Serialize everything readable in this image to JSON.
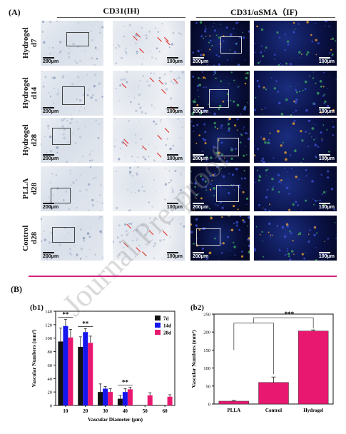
{
  "figure": {
    "panel_a_label": "(A)",
    "panel_b_label": "(B)",
    "header_ih": "CD31(IH)",
    "header_if": "CD31/αSMA（IF)",
    "rows": [
      {
        "label_line1": "Hydrogel",
        "label_line2": "d7"
      },
      {
        "label_line1": "Hydrogel",
        "label_line2": "d14"
      },
      {
        "label_line1": "Hydrogel",
        "label_line2": "d28"
      },
      {
        "label_line1": "PLLA",
        "label_line2": "d28"
      },
      {
        "label_line1": "Control",
        "label_line2": "d28"
      }
    ],
    "scale_low": "200μm",
    "scale_high": "100μm",
    "watermark": "Journal Pre-proof",
    "b1_label": "(b1)",
    "b2_label": "(b2)"
  },
  "chart_data": [
    {
      "type": "bar",
      "id": "b1",
      "categories": [
        "10",
        "20",
        "30",
        "40",
        "50",
        "60"
      ],
      "xlabel": "Vascular Diameter (μm)",
      "ylabel": "Vascular Numbers (mm²)",
      "ylim": [
        0,
        140
      ],
      "yticks": [
        0,
        20,
        40,
        60,
        80,
        100,
        120,
        140
      ],
      "grid": false,
      "legend_position": "top-right",
      "series": [
        {
          "name": "7d",
          "color": "#111111",
          "values": [
            95,
            87,
            20,
            10,
            0,
            0
          ],
          "errors": [
            20,
            15,
            12,
            5,
            0,
            0
          ]
        },
        {
          "name": "14d",
          "color": "#1515ee",
          "values": [
            118,
            109,
            25,
            20,
            0,
            0
          ],
          "errors": [
            10,
            5,
            3,
            5,
            0,
            0
          ]
        },
        {
          "name": "28d",
          "color": "#e8176f",
          "values": [
            101,
            93,
            20,
            24,
            15,
            13
          ],
          "errors": [
            12,
            10,
            5,
            3,
            4,
            3
          ]
        }
      ],
      "annotations": [
        {
          "text": "**",
          "category": "10"
        },
        {
          "text": "**",
          "category": "20"
        },
        {
          "text": "**",
          "category": "40"
        }
      ]
    },
    {
      "type": "bar",
      "id": "b2",
      "categories": [
        "PLLA",
        "Control",
        "Hydrogel"
      ],
      "values": [
        8,
        60,
        203
      ],
      "errors": [
        2,
        15,
        3
      ],
      "color": "#e8176f",
      "xlabel": "",
      "ylabel": "Vascular Numbers (mm²)",
      "ylim": [
        0,
        250
      ],
      "yticks": [
        0,
        50,
        100,
        150,
        200,
        250
      ],
      "grid": false,
      "annotations": [
        {
          "text": "***"
        }
      ]
    }
  ]
}
